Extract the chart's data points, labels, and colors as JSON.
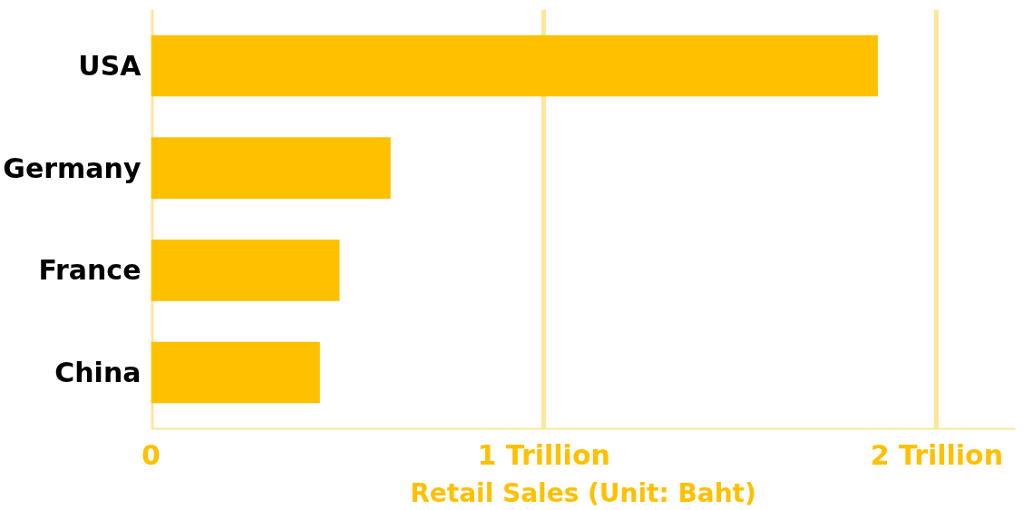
{
  "chart_data": {
    "type": "bar",
    "orientation": "horizontal",
    "xlabel": "Retail Sales (Unit: Baht)",
    "categories": [
      "USA",
      "Germany",
      "France",
      "China"
    ],
    "values": [
      1.85,
      0.61,
      0.48,
      0.43
    ],
    "color": "#ffc000",
    "xlim": [
      0,
      2.2
    ],
    "xticks": [
      0,
      {
        "value": 1,
        "label": "1 Trillion"
      },
      {
        "value": 2,
        "label": "2 Trillion"
      }
    ],
    "grid": "x"
  }
}
